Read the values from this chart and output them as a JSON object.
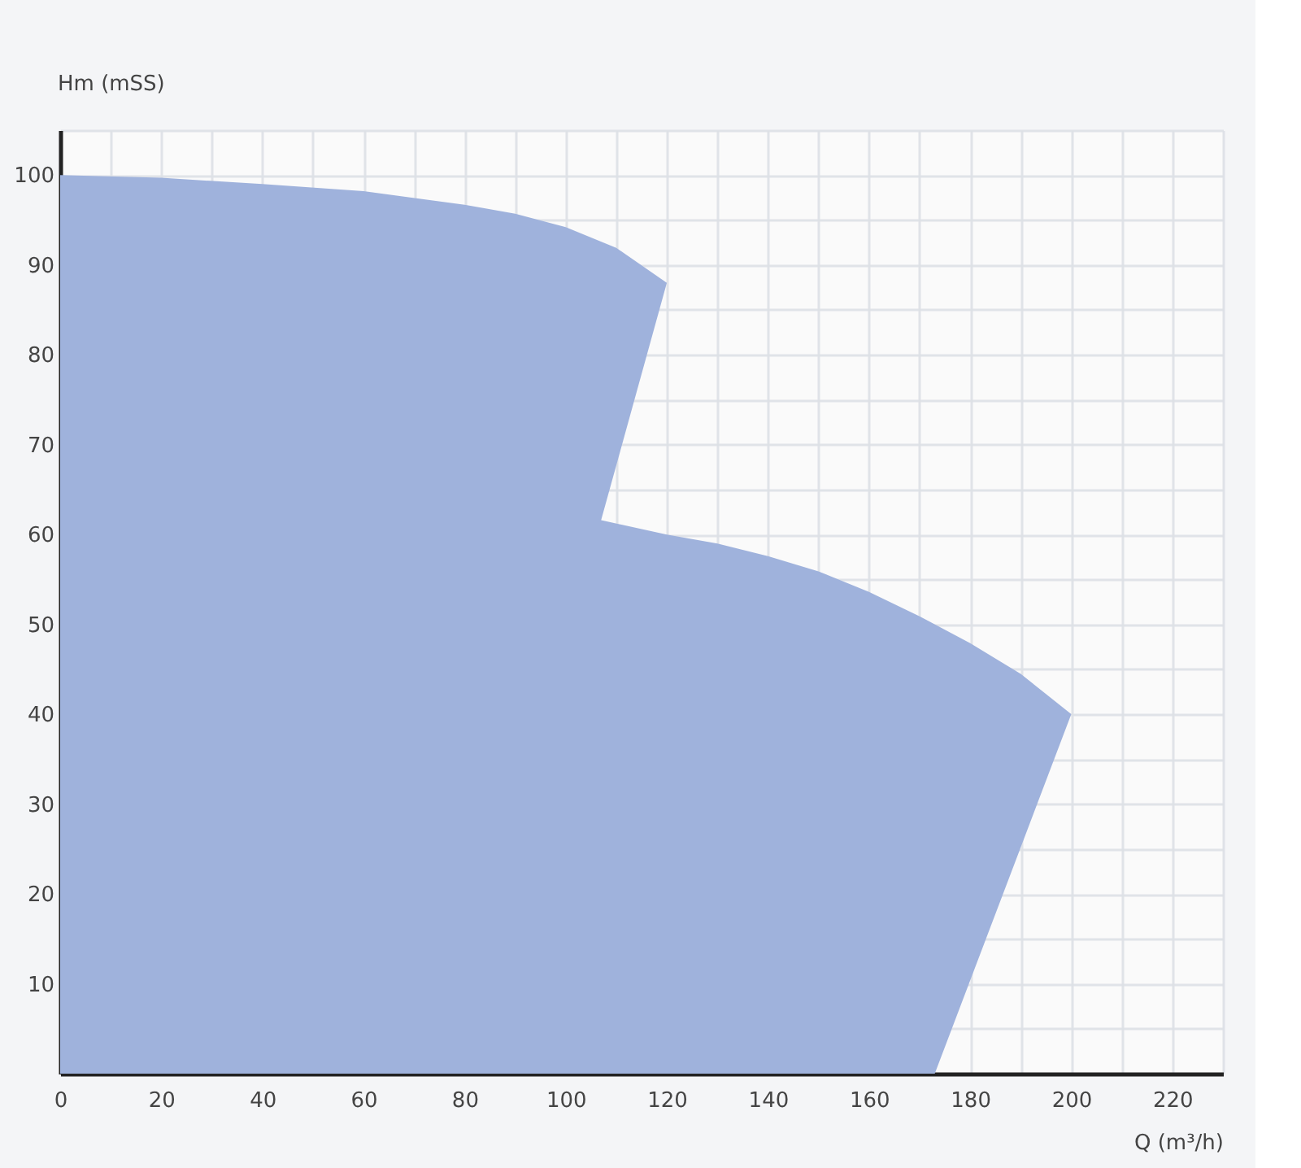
{
  "chart_data": {
    "type": "area",
    "xlabel": "Q (m³/h)",
    "ylabel": "Hm (mSS)",
    "series": [
      {
        "color": "#9fb2dc",
        "x": [
          173,
          200,
          190,
          180,
          170,
          160,
          150,
          140,
          130,
          120,
          107,
          120,
          110,
          100,
          90,
          80,
          60,
          40,
          20,
          0
        ],
        "values": [
          0,
          40,
          44.5,
          47.9,
          50.9,
          53.6,
          55.9,
          57.6,
          59,
          60,
          61.6,
          88,
          91.9,
          94.2,
          95.7,
          96.7,
          98.2,
          99,
          99.7,
          100
        ]
      }
    ],
    "xlim": [
      0,
      230
    ],
    "xticks": [
      0,
      {
        "value": 10,
        "label": null
      },
      20,
      {
        "value": 30,
        "label": null
      },
      40,
      {
        "value": 50,
        "label": null
      },
      60,
      {
        "value": 70,
        "label": null
      },
      80,
      {
        "value": 90,
        "label": null
      },
      100,
      {
        "value": 110,
        "label": null
      },
      120,
      {
        "value": 130,
        "label": null
      },
      140,
      {
        "value": 150,
        "label": null
      },
      160,
      {
        "value": 170,
        "label": null
      },
      180,
      {
        "value": 190,
        "label": null
      },
      200,
      {
        "value": 210,
        "label": null
      },
      220,
      {
        "value": 230,
        "label": null
      }
    ],
    "ylim": [
      0,
      105
    ],
    "yticks": [
      {
        "value": 5,
        "label": null
      },
      10,
      {
        "value": 15,
        "label": null
      },
      20,
      {
        "value": 25,
        "label": null
      },
      30,
      {
        "value": 35,
        "label": null
      },
      40,
      {
        "value": 45,
        "label": null
      },
      50,
      {
        "value": 55,
        "label": null
      },
      60,
      {
        "value": 65,
        "label": null
      },
      70,
      {
        "value": 75,
        "label": null
      },
      80,
      {
        "value": 85,
        "label": null
      },
      90,
      {
        "value": 95,
        "label": null
      },
      100,
      {
        "value": 105,
        "label": null
      }
    ],
    "grid": true
  }
}
